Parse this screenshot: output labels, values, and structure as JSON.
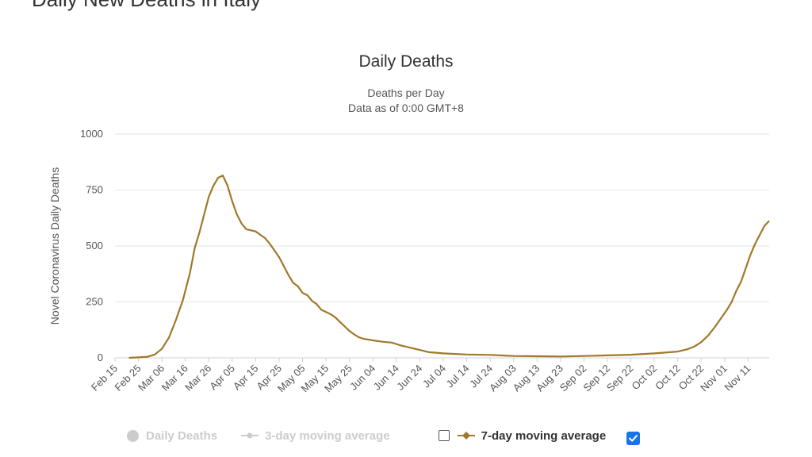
{
  "page_heading": "Daily New Deaths in Italy",
  "chart_data": {
    "type": "line",
    "title": "Daily Deaths",
    "subtitle_lines": [
      "Deaths per Day",
      "Data as of 0:00 GMT+8"
    ],
    "ylabel": "Novel Coronavirus Daily Deaths",
    "xlabel": "",
    "ylim": [
      0,
      1000
    ],
    "yticks": [
      0,
      250,
      500,
      750,
      1000
    ],
    "xlim": [
      "2020-02-15",
      "2020-11-20"
    ],
    "xticks": [
      "Feb 15",
      "Feb 25",
      "Mar 06",
      "Mar 16",
      "Mar 26",
      "Apr 05",
      "Apr 15",
      "Apr 25",
      "May 05",
      "May 15",
      "May 25",
      "Jun 04",
      "Jun 14",
      "Jun 24",
      "Jul 04",
      "Jul 14",
      "Jul 24",
      "Aug 03",
      "Aug 13",
      "Aug 23",
      "Sep 02",
      "Sep 12",
      "Sep 22",
      "Oct 02",
      "Oct 12",
      "Oct 22",
      "Nov 01",
      "Nov 11"
    ],
    "grid": true,
    "legend_placement": "bottom",
    "series": [
      {
        "name": "7-day moving average",
        "color": "#a0782a",
        "points": [
          [
            "2020-02-21",
            0
          ],
          [
            "2020-02-25",
            2
          ],
          [
            "2020-02-29",
            5
          ],
          [
            "2020-03-03",
            15
          ],
          [
            "2020-03-06",
            40
          ],
          [
            "2020-03-09",
            90
          ],
          [
            "2020-03-12",
            170
          ],
          [
            "2020-03-15",
            260
          ],
          [
            "2020-03-18",
            380
          ],
          [
            "2020-03-20",
            490
          ],
          [
            "2020-03-22",
            560
          ],
          [
            "2020-03-24",
            640
          ],
          [
            "2020-03-26",
            720
          ],
          [
            "2020-03-28",
            770
          ],
          [
            "2020-03-30",
            805
          ],
          [
            "2020-04-01",
            815
          ],
          [
            "2020-04-03",
            770
          ],
          [
            "2020-04-05",
            700
          ],
          [
            "2020-04-07",
            640
          ],
          [
            "2020-04-09",
            600
          ],
          [
            "2020-04-11",
            575
          ],
          [
            "2020-04-13",
            570
          ],
          [
            "2020-04-15",
            565
          ],
          [
            "2020-04-17",
            550
          ],
          [
            "2020-04-19",
            535
          ],
          [
            "2020-04-21",
            510
          ],
          [
            "2020-04-23",
            480
          ],
          [
            "2020-04-25",
            450
          ],
          [
            "2020-04-27",
            410
          ],
          [
            "2020-04-29",
            370
          ],
          [
            "2020-05-01",
            335
          ],
          [
            "2020-05-03",
            320
          ],
          [
            "2020-05-05",
            290
          ],
          [
            "2020-05-07",
            280
          ],
          [
            "2020-05-09",
            255
          ],
          [
            "2020-05-11",
            240
          ],
          [
            "2020-05-13",
            215
          ],
          [
            "2020-05-15",
            205
          ],
          [
            "2020-05-17",
            195
          ],
          [
            "2020-05-19",
            180
          ],
          [
            "2020-05-21",
            160
          ],
          [
            "2020-05-23",
            140
          ],
          [
            "2020-05-25",
            120
          ],
          [
            "2020-05-27",
            105
          ],
          [
            "2020-05-29",
            92
          ],
          [
            "2020-05-31",
            85
          ],
          [
            "2020-06-04",
            78
          ],
          [
            "2020-06-08",
            72
          ],
          [
            "2020-06-12",
            68
          ],
          [
            "2020-06-16",
            55
          ],
          [
            "2020-06-20",
            45
          ],
          [
            "2020-06-24",
            35
          ],
          [
            "2020-06-28",
            25
          ],
          [
            "2020-07-04",
            20
          ],
          [
            "2020-07-14",
            15
          ],
          [
            "2020-07-24",
            13
          ],
          [
            "2020-08-03",
            8
          ],
          [
            "2020-08-13",
            7
          ],
          [
            "2020-08-23",
            6
          ],
          [
            "2020-09-02",
            8
          ],
          [
            "2020-09-12",
            11
          ],
          [
            "2020-09-22",
            14
          ],
          [
            "2020-10-02",
            20
          ],
          [
            "2020-10-12",
            28
          ],
          [
            "2020-10-16",
            38
          ],
          [
            "2020-10-19",
            50
          ],
          [
            "2020-10-22",
            70
          ],
          [
            "2020-10-25",
            100
          ],
          [
            "2020-10-28",
            140
          ],
          [
            "2020-10-31",
            185
          ],
          [
            "2020-11-02",
            215
          ],
          [
            "2020-11-04",
            250
          ],
          [
            "2020-11-06",
            300
          ],
          [
            "2020-11-08",
            340
          ],
          [
            "2020-11-10",
            400
          ],
          [
            "2020-11-12",
            460
          ],
          [
            "2020-11-14",
            510
          ],
          [
            "2020-11-16",
            550
          ],
          [
            "2020-11-18",
            590
          ],
          [
            "2020-11-20",
            612
          ]
        ]
      }
    ]
  },
  "legend": {
    "daily_deaths": "Daily Deaths",
    "moving_3day": "3-day moving average",
    "moving_7day": "7-day moving average",
    "checkbox_3day_checked": false,
    "checkbox_7day_checked": true,
    "disabled_color": "#cccccc",
    "checkbox_color": "#1a73e8"
  }
}
